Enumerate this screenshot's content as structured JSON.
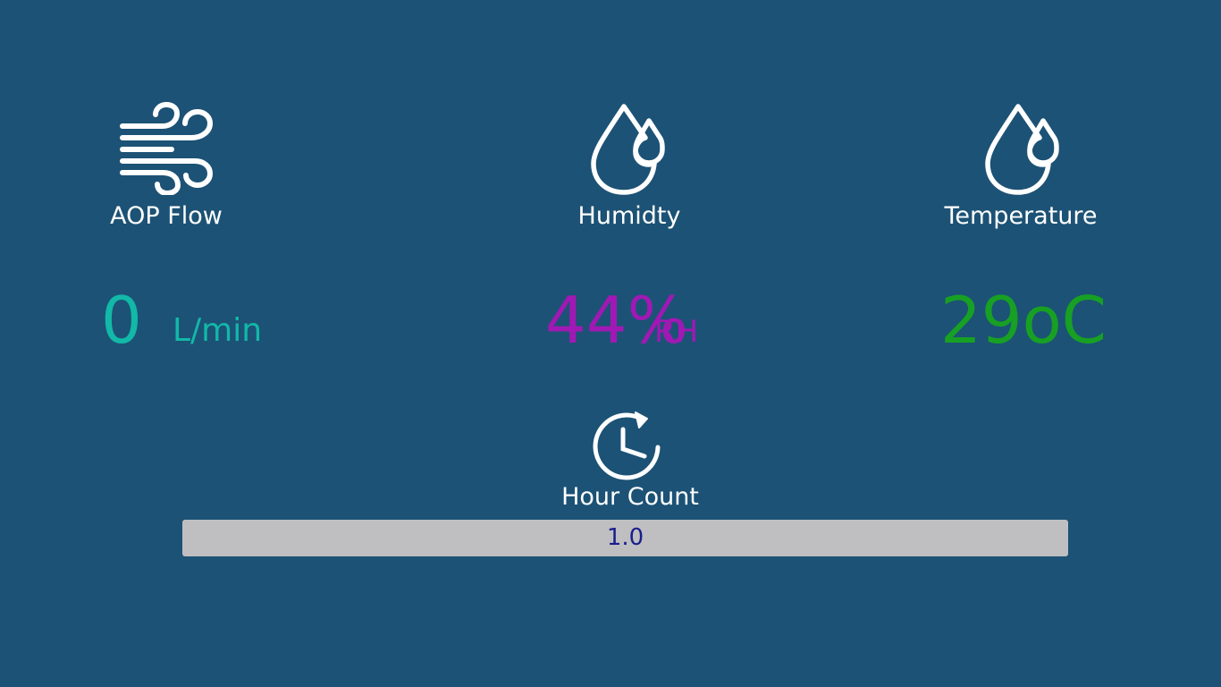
{
  "colors": {
    "background": "#1c5275",
    "flow": "#12b8a8",
    "humidity": "#a019b4",
    "temperature": "#17a024",
    "bar": "#bfbfc1",
    "bar_text": "#1a1e8c"
  },
  "aop_flow": {
    "icon": "wind-icon",
    "label": "AOP Flow",
    "value": "0",
    "unit": "L/min"
  },
  "humidity": {
    "icon": "droplets-icon",
    "label": "Humidty",
    "value": "44%",
    "unit": "RH"
  },
  "temperature": {
    "icon": "droplets-icon",
    "label": "Temperature",
    "value": "29oC"
  },
  "hour_count": {
    "icon": "clock-refresh-icon",
    "label": "Hour Count",
    "value": "1.0"
  }
}
